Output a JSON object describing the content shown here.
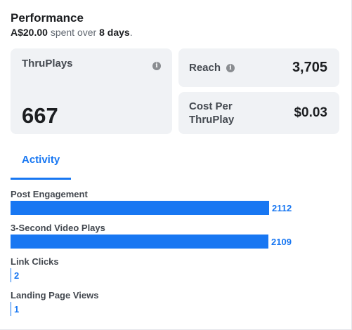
{
  "header": {
    "title": "Performance",
    "spent_amount": "A$20.00",
    "spent_middle": " spent over ",
    "spent_days": "8 days",
    "spent_end": "."
  },
  "metrics": {
    "thruplays": {
      "label": "ThruPlays",
      "value": "667",
      "icon": "info-icon"
    },
    "reach": {
      "label": "Reach",
      "value": "3,705",
      "icon": "info-icon"
    },
    "cost_per_thruplay": {
      "label_line1": "Cost Per",
      "label_line2": "ThruPlay",
      "value": "$0.03"
    }
  },
  "tabs": [
    {
      "label": "Activity",
      "active": true
    }
  ],
  "activity": {
    "max_value": 2112,
    "rows": [
      {
        "label": "Post Engagement",
        "value": 2112,
        "display": "2112"
      },
      {
        "label": "3-Second Video Plays",
        "value": 2109,
        "display": "2109"
      },
      {
        "label": "Link Clicks",
        "value": 2,
        "display": "2"
      },
      {
        "label": "Landing Page Views",
        "value": 1,
        "display": "1"
      }
    ]
  },
  "colors": {
    "accent": "#1877f2",
    "card_background": "#f0f2f5",
    "text_primary": "#1c1e21",
    "text_secondary": "#606770"
  }
}
